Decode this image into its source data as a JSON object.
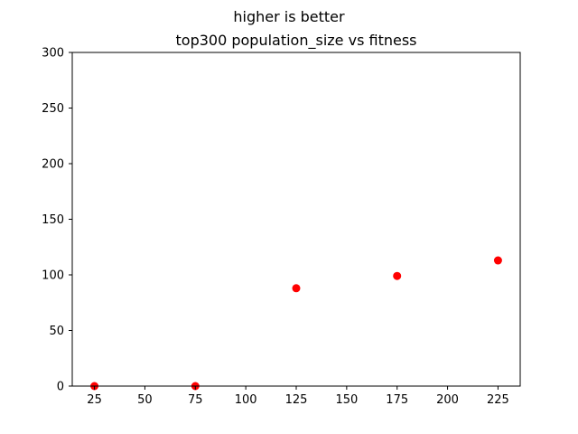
{
  "chart_data": {
    "type": "scatter",
    "suptitle": "higher is better",
    "title": "top300 population_size vs fitness",
    "xlabel": "",
    "ylabel": "",
    "xlim": [
      14,
      236
    ],
    "ylim": [
      0,
      300
    ],
    "xticks": [
      25,
      50,
      75,
      100,
      125,
      150,
      175,
      200,
      225
    ],
    "yticks": [
      0,
      50,
      100,
      150,
      200,
      250,
      300
    ],
    "grid": false,
    "legend": false,
    "series": [
      {
        "color": "#ff0000",
        "points": [
          {
            "x": 25,
            "y": 0
          },
          {
            "x": 75,
            "y": 0
          },
          {
            "x": 125,
            "y": 88
          },
          {
            "x": 175,
            "y": 99
          },
          {
            "x": 225,
            "y": 113
          }
        ]
      }
    ]
  }
}
